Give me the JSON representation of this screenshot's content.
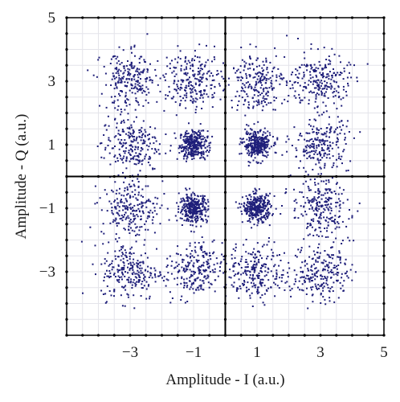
{
  "chart_data": {
    "type": "scatter",
    "title": "",
    "xlabel": "Amplitude - I (a.u.)",
    "ylabel": "Amplitude - Q (a.u.)",
    "xlim": [
      -5,
      5
    ],
    "ylim": [
      -5,
      5
    ],
    "x_ticks": [
      -3,
      -1,
      1,
      3,
      5
    ],
    "y_ticks": [
      5,
      3,
      1,
      -1,
      -3
    ],
    "x_tick_labels": [
      "−3",
      "−1",
      "1",
      "3",
      "5"
    ],
    "y_tick_labels": [
      "5",
      "3",
      "1",
      "−1",
      "−3"
    ],
    "grid": true,
    "center_axes": true,
    "legend": "none",
    "marker_color": "#1f1f7a",
    "constellation": "16-APSK style (inner 4 + outer 12)",
    "inner_ring": {
      "centers": [
        [
          -1,
          1
        ],
        [
          1,
          1
        ],
        [
          -1,
          -1
        ],
        [
          1,
          -1
        ]
      ],
      "spread": 0.22,
      "points_per_cluster": 320
    },
    "outer_ring": {
      "centers": [
        [
          -3,
          3
        ],
        [
          -1,
          3
        ],
        [
          1,
          3
        ],
        [
          3,
          3
        ],
        [
          3,
          1
        ],
        [
          3,
          -1
        ],
        [
          3,
          -3
        ],
        [
          1,
          -3
        ],
        [
          -1,
          -3
        ],
        [
          -3,
          -3
        ],
        [
          -3,
          -1
        ],
        [
          -3,
          1
        ]
      ],
      "spread": 0.45,
      "points_per_cluster": 230
    },
    "outer_ring_shape": {
      "corner_points": [
        [
          -3,
          3
        ],
        [
          3,
          3
        ],
        [
          3,
          -3
        ],
        [
          -3,
          -3
        ]
      ],
      "edge_points": [
        [
          -1,
          3
        ],
        [
          1,
          3
        ],
        [
          3,
          1
        ],
        [
          3,
          -1
        ],
        [
          1,
          -3
        ],
        [
          -1,
          -3
        ],
        [
          -3,
          -1
        ],
        [
          -3,
          1
        ]
      ]
    }
  }
}
